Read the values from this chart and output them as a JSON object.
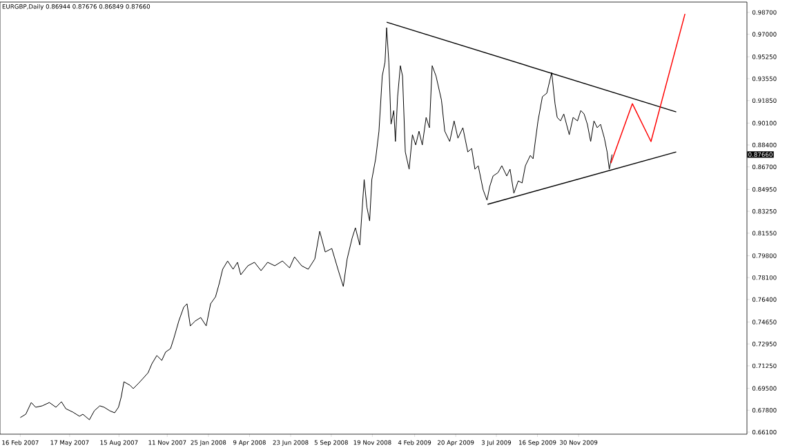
{
  "chart_data": {
    "type": "line",
    "title": "EURGBP,Daily  0.86944 0.87676 0.86849 0.87660",
    "xlim": [
      "2007-01-10",
      "2010-10-03"
    ],
    "ylim": [
      0.6594,
      0.995
    ],
    "xticks": [
      {
        "value": "2007-02-16",
        "label": "16 Feb 2007"
      },
      {
        "value": "2007-05-17",
        "label": "17 May 2007"
      },
      {
        "value": "2007-08-15",
        "label": "15 Aug 2007"
      },
      {
        "value": "2007-11-11",
        "label": "11 Nov 2007"
      },
      {
        "value": "2008-01-25",
        "label": "25 Jan 2008"
      },
      {
        "value": "2008-04-09",
        "label": "9 Apr 2008"
      },
      {
        "value": "2008-06-23",
        "label": "23 Jun 2008"
      },
      {
        "value": "2008-09-05",
        "label": "5 Sep 2008"
      },
      {
        "value": "2008-11-19",
        "label": "19 Nov 2008"
      },
      {
        "value": "2009-02-04",
        "label": "4 Feb 2009"
      },
      {
        "value": "2009-04-20",
        "label": "20 Apr 2009"
      },
      {
        "value": "2009-07-03",
        "label": "3 Jul 2009"
      },
      {
        "value": "2009-09-16",
        "label": "16 Sep 2009"
      },
      {
        "value": "2009-11-30",
        "label": "30 Nov 2009"
      }
    ],
    "yticks": [
      {
        "value": 0.661,
        "label": "0.66100"
      },
      {
        "value": 0.678,
        "label": "0.67800"
      },
      {
        "value": 0.695,
        "label": "0.69500"
      },
      {
        "value": 0.7125,
        "label": "0.71250"
      },
      {
        "value": 0.7295,
        "label": "0.72950"
      },
      {
        "value": 0.7465,
        "label": "0.74650"
      },
      {
        "value": 0.764,
        "label": "0.76400"
      },
      {
        "value": 0.781,
        "label": "0.78100"
      },
      {
        "value": 0.798,
        "label": "0.79800"
      },
      {
        "value": 0.8155,
        "label": "0.81550"
      },
      {
        "value": 0.8325,
        "label": "0.83250"
      },
      {
        "value": 0.8495,
        "label": "0.84950"
      },
      {
        "value": 0.867,
        "label": "0.86700"
      },
      {
        "value": 0.884,
        "label": "0.88400"
      },
      {
        "value": 0.901,
        "label": "0.90100"
      },
      {
        "value": 0.9185,
        "label": "0.91850"
      },
      {
        "value": 0.9355,
        "label": "0.93550"
      },
      {
        "value": 0.9525,
        "label": "0.95250"
      },
      {
        "value": 0.97,
        "label": "0.97000"
      },
      {
        "value": 0.987,
        "label": "0.98700"
      }
    ],
    "grid": false,
    "marker": "none",
    "line_style": "solid",
    "annotations": [
      "0.87660"
    ],
    "series": [
      {
        "color": "#000000",
        "x": [
          "2007-02-16",
          "2007-02-26",
          "2007-03-08",
          "2007-03-16",
          "2007-03-28",
          "2007-04-10",
          "2007-04-22",
          "2007-05-02",
          "2007-05-10",
          "2007-05-23",
          "2007-06-04",
          "2007-06-10",
          "2007-06-22",
          "2007-07-01",
          "2007-07-11",
          "2007-07-19",
          "2007-07-29",
          "2007-08-07",
          "2007-08-14",
          "2007-08-19",
          "2007-08-24",
          "2007-09-04",
          "2007-09-10",
          "2007-09-20",
          "2007-09-28",
          "2007-10-07",
          "2007-10-14",
          "2007-10-23",
          "2007-11-01",
          "2007-11-08",
          "2007-11-17",
          "2007-11-23",
          "2007-12-02",
          "2007-12-11",
          "2007-12-17",
          "2007-12-23",
          "2008-01-01",
          "2008-01-11",
          "2008-01-21",
          "2008-01-29",
          "2008-02-07",
          "2008-02-14",
          "2008-02-20",
          "2008-02-29",
          "2008-03-10",
          "2008-03-18",
          "2008-03-24",
          "2008-04-06",
          "2008-04-18",
          "2008-04-30",
          "2008-05-12",
          "2008-05-25",
          "2008-06-08",
          "2008-06-21",
          "2008-06-30",
          "2008-07-13",
          "2008-07-25",
          "2008-08-06",
          "2008-08-15",
          "2008-08-25",
          "2008-09-06",
          "2008-09-18",
          "2008-09-27",
          "2008-10-04",
          "2008-10-13",
          "2008-10-19",
          "2008-10-27",
          "2008-11-04",
          "2008-11-09",
          "2008-11-14",
          "2008-11-18",
          "2008-11-25",
          "2008-12-01",
          "2008-12-07",
          "2008-12-12",
          "2008-12-15",
          "2008-12-19",
          "2008-12-23",
          "2008-12-28",
          "2008-12-31",
          "2009-01-04",
          "2009-01-09",
          "2009-01-13",
          "2009-01-18",
          "2009-01-25",
          "2009-01-31",
          "2009-02-06",
          "2009-02-12",
          "2009-02-18",
          "2009-02-25",
          "2009-03-03",
          "2009-03-08",
          "2009-03-15",
          "2009-03-25",
          "2009-03-31",
          "2009-04-09",
          "2009-04-17",
          "2009-04-24",
          "2009-05-03",
          "2009-05-12",
          "2009-05-19",
          "2009-05-25",
          "2009-05-31",
          "2009-06-09",
          "2009-06-16",
          "2009-06-21",
          "2009-06-27",
          "2009-07-06",
          "2009-07-13",
          "2009-07-22",
          "2009-07-28",
          "2009-08-04",
          "2009-08-12",
          "2009-08-19",
          "2009-08-25",
          "2009-09-03",
          "2009-09-08",
          "2009-09-12",
          "2009-09-17",
          "2009-09-25",
          "2009-10-03",
          "2009-10-12",
          "2009-10-18",
          "2009-10-22",
          "2009-10-28",
          "2009-11-03",
          "2009-11-13",
          "2009-11-20",
          "2009-11-28",
          "2009-12-04",
          "2009-12-10",
          "2009-12-16",
          "2009-12-22",
          "2009-12-28",
          "2010-01-03",
          "2010-01-09",
          "2010-01-16",
          "2010-01-21",
          "2010-01-25",
          "2010-01-30"
        ],
        "values": [
          0.6723,
          0.6749,
          0.684,
          0.6803,
          0.6814,
          0.684,
          0.6803,
          0.6846,
          0.6792,
          0.6765,
          0.6733,
          0.6749,
          0.6706,
          0.6776,
          0.6814,
          0.6803,
          0.6776,
          0.676,
          0.6803,
          0.6883,
          0.7001,
          0.6974,
          0.6948,
          0.6991,
          0.7028,
          0.7071,
          0.7141,
          0.7205,
          0.7167,
          0.7232,
          0.7259,
          0.7339,
          0.7473,
          0.758,
          0.7607,
          0.7435,
          0.7473,
          0.75,
          0.7435,
          0.7607,
          0.7661,
          0.7768,
          0.7875,
          0.7939,
          0.7875,
          0.7929,
          0.7832,
          0.7902,
          0.7929,
          0.7864,
          0.7929,
          0.7902,
          0.7939,
          0.7886,
          0.7971,
          0.7902,
          0.7875,
          0.7955,
          0.817,
          0.8009,
          0.8036,
          0.7864,
          0.7741,
          0.7955,
          0.8116,
          0.8197,
          0.8063,
          0.8572,
          0.8357,
          0.825,
          0.8572,
          0.8733,
          0.8947,
          0.9376,
          0.9483,
          0.9751,
          0.9483,
          0.9001,
          0.9108,
          0.8867,
          0.9215,
          0.9456,
          0.9376,
          0.8786,
          0.8652,
          0.892,
          0.884,
          0.8947,
          0.884,
          0.9054,
          0.8974,
          0.9456,
          0.9376,
          0.9188,
          0.8947,
          0.8867,
          0.9027,
          0.8893,
          0.8974,
          0.8786,
          0.8813,
          0.8652,
          0.8679,
          0.8491,
          0.8411,
          0.8518,
          0.8599,
          0.8625,
          0.8679,
          0.8599,
          0.8652,
          0.8465,
          0.8561,
          0.8545,
          0.8679,
          0.8759,
          0.8733,
          0.8867,
          0.9027,
          0.9215,
          0.9242,
          0.9403,
          0.9161,
          0.9054,
          0.9027,
          0.9081,
          0.892,
          0.9054,
          0.9027,
          0.9108,
          0.9081,
          0.9001,
          0.8867,
          0.9027,
          0.8974,
          0.9001,
          0.8893,
          0.8786,
          0.8652,
          0.8766
        ]
      },
      {
        "color": "#000000",
        "x": [
          "2008-12-15",
          "2010-05-27"
        ],
        "values": [
          0.9794,
          0.9097
        ]
      },
      {
        "color": "#000000",
        "x": [
          "2009-06-17",
          "2010-05-27"
        ],
        "values": [
          0.8379,
          0.8786
        ]
      },
      {
        "color": "#ff0000",
        "x": [
          "2010-01-28",
          "2010-03-08",
          "2010-04-11",
          "2010-06-12"
        ],
        "values": [
          0.87,
          0.9161,
          0.8867,
          0.9858
        ]
      }
    ]
  }
}
